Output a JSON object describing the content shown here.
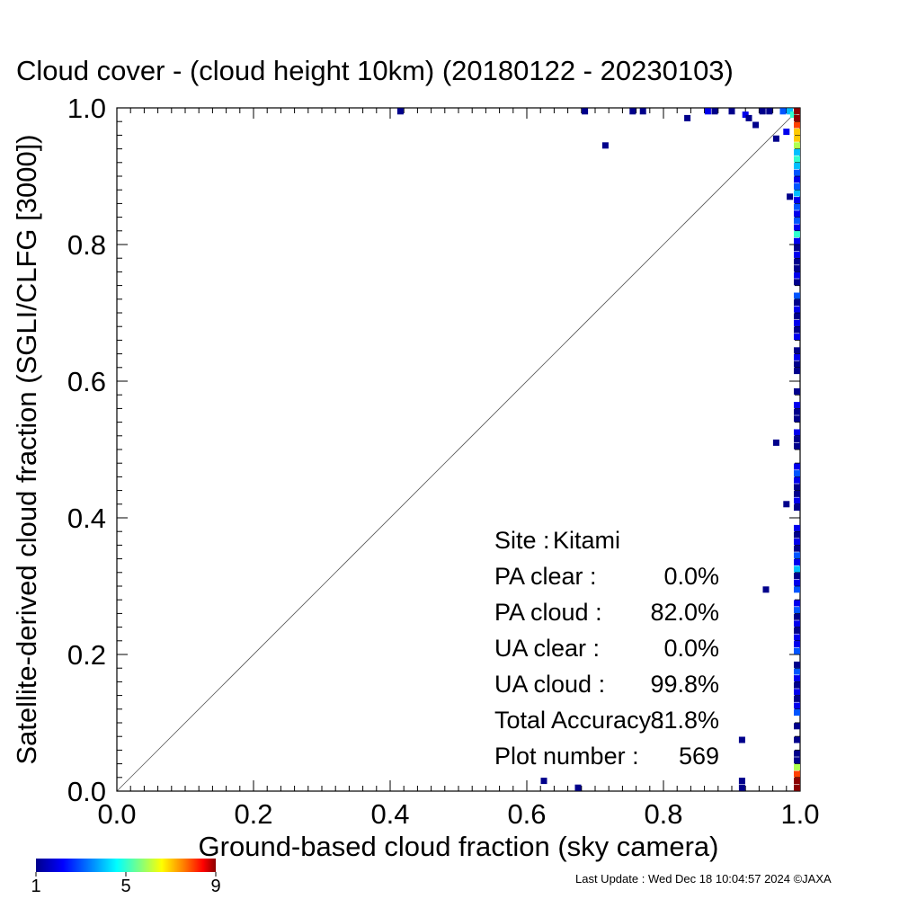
{
  "chart_data": {
    "type": "scatter",
    "title": "Cloud cover - (cloud height 10km)  (20180122 - 20230103)",
    "xlabel": "Ground-based cloud fraction (sky camera)",
    "ylabel": "Satellite-derived cloud fraction (SGLI/CLFG [3000])",
    "xlim": [
      0,
      1
    ],
    "ylim": [
      0,
      1
    ],
    "xticks": [
      "0.0",
      "0.2",
      "0.4",
      "0.6",
      "0.8",
      "1.0"
    ],
    "yticks": [
      "0.0",
      "0.2",
      "0.4",
      "0.6",
      "0.8",
      "1.0"
    ],
    "diagonal": true,
    "colorbar": {
      "min": 1,
      "max": 9,
      "ticks": [
        "1",
        "5",
        "9"
      ]
    },
    "stats": [
      {
        "label": "Site :",
        "value": "Kitami"
      },
      {
        "label": "PA clear :",
        "value": "0.0%"
      },
      {
        "label": "PA cloud :",
        "value": "82.0%"
      },
      {
        "label": "UA clear :",
        "value": "0.0%"
      },
      {
        "label": "UA cloud :",
        "value": "99.8%"
      },
      {
        "label": "Total Accuracy :",
        "value": "81.8%"
      },
      {
        "label": "Plot number :",
        "value": "569"
      }
    ],
    "points": [
      {
        "x": 0.415,
        "y": 0.995,
        "c": 1
      },
      {
        "x": 0.685,
        "y": 0.995,
        "c": 1
      },
      {
        "x": 0.715,
        "y": 0.945,
        "c": 1
      },
      {
        "x": 0.755,
        "y": 0.995,
        "c": 1
      },
      {
        "x": 0.77,
        "y": 0.995,
        "c": 1
      },
      {
        "x": 0.835,
        "y": 0.985,
        "c": 1
      },
      {
        "x": 0.865,
        "y": 0.995,
        "c": 2
      },
      {
        "x": 0.875,
        "y": 0.995,
        "c": 1
      },
      {
        "x": 0.9,
        "y": 0.995,
        "c": 1
      },
      {
        "x": 0.92,
        "y": 0.99,
        "c": 2
      },
      {
        "x": 0.925,
        "y": 0.985,
        "c": 1
      },
      {
        "x": 0.935,
        "y": 0.975,
        "c": 1
      },
      {
        "x": 0.945,
        "y": 0.995,
        "c": 1
      },
      {
        "x": 0.955,
        "y": 0.995,
        "c": 1
      },
      {
        "x": 0.965,
        "y": 0.955,
        "c": 1
      },
      {
        "x": 0.975,
        "y": 0.995,
        "c": 3
      },
      {
        "x": 0.985,
        "y": 0.995,
        "c": 4
      },
      {
        "x": 0.99,
        "y": 0.99,
        "c": 5
      },
      {
        "x": 0.985,
        "y": 0.87,
        "c": 1
      },
      {
        "x": 0.965,
        "y": 0.51,
        "c": 1
      },
      {
        "x": 0.98,
        "y": 0.42,
        "c": 1
      },
      {
        "x": 0.95,
        "y": 0.295,
        "c": 1
      },
      {
        "x": 0.915,
        "y": 0.075,
        "c": 1
      },
      {
        "x": 0.625,
        "y": 0.015,
        "c": 1
      },
      {
        "x": 0.675,
        "y": 0.005,
        "c": 1
      },
      {
        "x": 0.915,
        "y": 0.015,
        "c": 1
      },
      {
        "x": 0.915,
        "y": 0.005,
        "c": 1
      },
      {
        "x": 0.98,
        "y": 0.965,
        "c": 2
      },
      {
        "x": 1.0,
        "y": 0.995,
        "c": 9
      },
      {
        "x": 1.0,
        "y": 0.985,
        "c": 9
      },
      {
        "x": 1.0,
        "y": 0.975,
        "c": 8
      },
      {
        "x": 1.0,
        "y": 0.965,
        "c": 7
      },
      {
        "x": 1.0,
        "y": 0.955,
        "c": 7
      },
      {
        "x": 1.0,
        "y": 0.945,
        "c": 6
      },
      {
        "x": 1.0,
        "y": 0.935,
        "c": 4
      },
      {
        "x": 1.0,
        "y": 0.925,
        "c": 5
      },
      {
        "x": 1.0,
        "y": 0.915,
        "c": 4
      },
      {
        "x": 1.0,
        "y": 0.905,
        "c": 3
      },
      {
        "x": 1.0,
        "y": 0.895,
        "c": 2
      },
      {
        "x": 1.0,
        "y": 0.885,
        "c": 3
      },
      {
        "x": 1.0,
        "y": 0.875,
        "c": 4
      },
      {
        "x": 1.0,
        "y": 0.865,
        "c": 2
      },
      {
        "x": 1.0,
        "y": 0.855,
        "c": 3
      },
      {
        "x": 1.0,
        "y": 0.845,
        "c": 2
      },
      {
        "x": 1.0,
        "y": 0.835,
        "c": 3
      },
      {
        "x": 1.0,
        "y": 0.825,
        "c": 2
      },
      {
        "x": 1.0,
        "y": 0.815,
        "c": 5
      },
      {
        "x": 1.0,
        "y": 0.805,
        "c": 2
      },
      {
        "x": 1.0,
        "y": 0.795,
        "c": 1
      },
      {
        "x": 1.0,
        "y": 0.785,
        "c": 2
      },
      {
        "x": 1.0,
        "y": 0.775,
        "c": 1
      },
      {
        "x": 1.0,
        "y": 0.765,
        "c": 1
      },
      {
        "x": 1.0,
        "y": 0.755,
        "c": 2
      },
      {
        "x": 1.0,
        "y": 0.745,
        "c": 1
      },
      {
        "x": 1.0,
        "y": 0.725,
        "c": 3
      },
      {
        "x": 1.0,
        "y": 0.715,
        "c": 1
      },
      {
        "x": 1.0,
        "y": 0.705,
        "c": 2
      },
      {
        "x": 1.0,
        "y": 0.695,
        "c": 1
      },
      {
        "x": 1.0,
        "y": 0.685,
        "c": 2
      },
      {
        "x": 1.0,
        "y": 0.675,
        "c": 1
      },
      {
        "x": 1.0,
        "y": 0.665,
        "c": 2
      },
      {
        "x": 1.0,
        "y": 0.645,
        "c": 1
      },
      {
        "x": 1.0,
        "y": 0.635,
        "c": 2
      },
      {
        "x": 1.0,
        "y": 0.625,
        "c": 1
      },
      {
        "x": 1.0,
        "y": 0.615,
        "c": 1
      },
      {
        "x": 1.0,
        "y": 0.585,
        "c": 1
      },
      {
        "x": 1.0,
        "y": 0.565,
        "c": 2
      },
      {
        "x": 1.0,
        "y": 0.555,
        "c": 1
      },
      {
        "x": 1.0,
        "y": 0.545,
        "c": 1
      },
      {
        "x": 1.0,
        "y": 0.525,
        "c": 2
      },
      {
        "x": 1.0,
        "y": 0.515,
        "c": 1
      },
      {
        "x": 1.0,
        "y": 0.505,
        "c": 1
      },
      {
        "x": 1.0,
        "y": 0.475,
        "c": 2
      },
      {
        "x": 1.0,
        "y": 0.465,
        "c": 3
      },
      {
        "x": 1.0,
        "y": 0.455,
        "c": 2
      },
      {
        "x": 1.0,
        "y": 0.445,
        "c": 1
      },
      {
        "x": 1.0,
        "y": 0.435,
        "c": 1
      },
      {
        "x": 1.0,
        "y": 0.425,
        "c": 2
      },
      {
        "x": 1.0,
        "y": 0.415,
        "c": 1
      },
      {
        "x": 1.0,
        "y": 0.385,
        "c": 2
      },
      {
        "x": 1.0,
        "y": 0.375,
        "c": 1
      },
      {
        "x": 1.0,
        "y": 0.365,
        "c": 2
      },
      {
        "x": 1.0,
        "y": 0.355,
        "c": 1
      },
      {
        "x": 1.0,
        "y": 0.345,
        "c": 3
      },
      {
        "x": 1.0,
        "y": 0.335,
        "c": 2
      },
      {
        "x": 1.0,
        "y": 0.325,
        "c": 4
      },
      {
        "x": 1.0,
        "y": 0.315,
        "c": 1
      },
      {
        "x": 1.0,
        "y": 0.305,
        "c": 2
      },
      {
        "x": 1.0,
        "y": 0.295,
        "c": 3
      },
      {
        "x": 1.0,
        "y": 0.275,
        "c": 2
      },
      {
        "x": 1.0,
        "y": 0.265,
        "c": 3
      },
      {
        "x": 1.0,
        "y": 0.255,
        "c": 1
      },
      {
        "x": 1.0,
        "y": 0.245,
        "c": 2
      },
      {
        "x": 1.0,
        "y": 0.235,
        "c": 1
      },
      {
        "x": 1.0,
        "y": 0.225,
        "c": 2
      },
      {
        "x": 1.0,
        "y": 0.215,
        "c": 2
      },
      {
        "x": 1.0,
        "y": 0.205,
        "c": 3
      },
      {
        "x": 1.0,
        "y": 0.185,
        "c": 1
      },
      {
        "x": 1.0,
        "y": 0.175,
        "c": 3
      },
      {
        "x": 1.0,
        "y": 0.165,
        "c": 2
      },
      {
        "x": 1.0,
        "y": 0.155,
        "c": 1
      },
      {
        "x": 1.0,
        "y": 0.145,
        "c": 2
      },
      {
        "x": 1.0,
        "y": 0.135,
        "c": 1
      },
      {
        "x": 1.0,
        "y": 0.125,
        "c": 2
      },
      {
        "x": 1.0,
        "y": 0.115,
        "c": 3
      },
      {
        "x": 1.0,
        "y": 0.095,
        "c": 1
      },
      {
        "x": 1.0,
        "y": 0.075,
        "c": 1
      },
      {
        "x": 1.0,
        "y": 0.055,
        "c": 1
      },
      {
        "x": 1.0,
        "y": 0.045,
        "c": 1
      },
      {
        "x": 1.0,
        "y": 0.035,
        "c": 6
      },
      {
        "x": 1.0,
        "y": 0.025,
        "c": 8
      },
      {
        "x": 1.0,
        "y": 0.015,
        "c": 9
      },
      {
        "x": 1.0,
        "y": 0.005,
        "c": 9
      }
    ]
  },
  "footer": {
    "text": "Last Update : Wed Dec 18 10:04:57 2024  ©JAXA"
  }
}
